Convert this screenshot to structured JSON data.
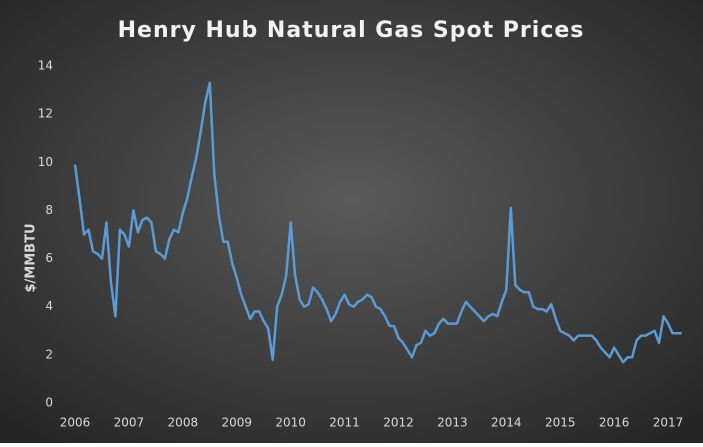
{
  "chart_data": {
    "type": "line",
    "title": "Henry Hub Natural Gas Spot Prices",
    "ylabel": "$/MMBTU",
    "x": [
      2006.0,
      2006.083,
      2006.167,
      2006.25,
      2006.333,
      2006.417,
      2006.5,
      2006.583,
      2006.667,
      2006.75,
      2006.833,
      2006.917,
      2007.0,
      2007.083,
      2007.167,
      2007.25,
      2007.333,
      2007.417,
      2007.5,
      2007.583,
      2007.667,
      2007.75,
      2007.833,
      2007.917,
      2008.0,
      2008.083,
      2008.167,
      2008.25,
      2008.333,
      2008.417,
      2008.5,
      2008.583,
      2008.667,
      2008.75,
      2008.833,
      2008.917,
      2009.0,
      2009.083,
      2009.167,
      2009.25,
      2009.333,
      2009.417,
      2009.5,
      2009.583,
      2009.667,
      2009.75,
      2009.833,
      2009.917,
      2010.0,
      2010.083,
      2010.167,
      2010.25,
      2010.333,
      2010.417,
      2010.5,
      2010.583,
      2010.667,
      2010.75,
      2010.833,
      2010.917,
      2011.0,
      2011.083,
      2011.167,
      2011.25,
      2011.333,
      2011.417,
      2011.5,
      2011.583,
      2011.667,
      2011.75,
      2011.833,
      2011.917,
      2012.0,
      2012.083,
      2012.167,
      2012.25,
      2012.333,
      2012.417,
      2012.5,
      2012.583,
      2012.667,
      2012.75,
      2012.833,
      2012.917,
      2013.0,
      2013.083,
      2013.167,
      2013.25,
      2013.333,
      2013.417,
      2013.5,
      2013.583,
      2013.667,
      2013.75,
      2013.833,
      2013.917,
      2014.0,
      2014.083,
      2014.167,
      2014.25,
      2014.333,
      2014.417,
      2014.5,
      2014.583,
      2014.667,
      2014.75,
      2014.833,
      2014.917,
      2015.0,
      2015.083,
      2015.167,
      2015.25,
      2015.333,
      2015.417,
      2015.5,
      2015.583,
      2015.667,
      2015.75,
      2015.833,
      2015.917,
      2016.0,
      2016.083,
      2016.167,
      2016.25,
      2016.333,
      2016.417,
      2016.5,
      2016.583,
      2016.667,
      2016.75,
      2016.833,
      2016.917,
      2017.0,
      2017.083,
      2017.167,
      2017.25
    ],
    "series": [
      {
        "color": "#5b9bd5",
        "values": [
          9.9,
          8.5,
          7.0,
          7.2,
          6.3,
          6.2,
          6.0,
          7.5,
          5.0,
          3.6,
          7.2,
          7.0,
          6.5,
          8.0,
          7.1,
          7.6,
          7.7,
          7.5,
          6.3,
          6.2,
          6.0,
          6.8,
          7.2,
          7.1,
          7.9,
          8.5,
          9.4,
          10.2,
          11.3,
          12.5,
          13.3,
          9.5,
          7.8,
          6.7,
          6.7,
          5.8,
          5.2,
          4.5,
          4.0,
          3.5,
          3.8,
          3.8,
          3.4,
          3.1,
          1.8,
          4.0,
          4.5,
          5.3,
          7.5,
          5.3,
          4.3,
          4.0,
          4.1,
          4.8,
          4.6,
          4.3,
          3.9,
          3.4,
          3.7,
          4.2,
          4.5,
          4.1,
          4.0,
          4.2,
          4.3,
          4.5,
          4.4,
          4.0,
          3.9,
          3.6,
          3.2,
          3.2,
          2.7,
          2.5,
          2.2,
          1.9,
          2.4,
          2.5,
          3.0,
          2.8,
          2.9,
          3.3,
          3.5,
          3.3,
          3.3,
          3.3,
          3.8,
          4.2,
          4.0,
          3.8,
          3.6,
          3.4,
          3.6,
          3.7,
          3.6,
          4.2,
          4.7,
          8.1,
          4.9,
          4.7,
          4.6,
          4.6,
          4.0,
          3.9,
          3.9,
          3.8,
          4.1,
          3.5,
          3.0,
          2.9,
          2.8,
          2.6,
          2.8,
          2.8,
          2.8,
          2.8,
          2.6,
          2.3,
          2.1,
          1.9,
          2.3,
          2.0,
          1.7,
          1.9,
          1.9,
          2.6,
          2.8,
          2.8,
          2.9,
          3.0,
          2.5,
          3.6,
          3.3,
          2.9,
          2.9,
          2.9
        ]
      }
    ],
    "xlim": [
      2006,
      2017.37
    ],
    "xticks": [
      2006,
      2007,
      2008,
      2009,
      2010,
      2011,
      2012,
      2013,
      2014,
      2015,
      2016,
      2017
    ],
    "ylim": [
      0,
      14
    ],
    "yticks": [
      0,
      2,
      4,
      6,
      8,
      10,
      12,
      14
    ],
    "grid": false
  }
}
